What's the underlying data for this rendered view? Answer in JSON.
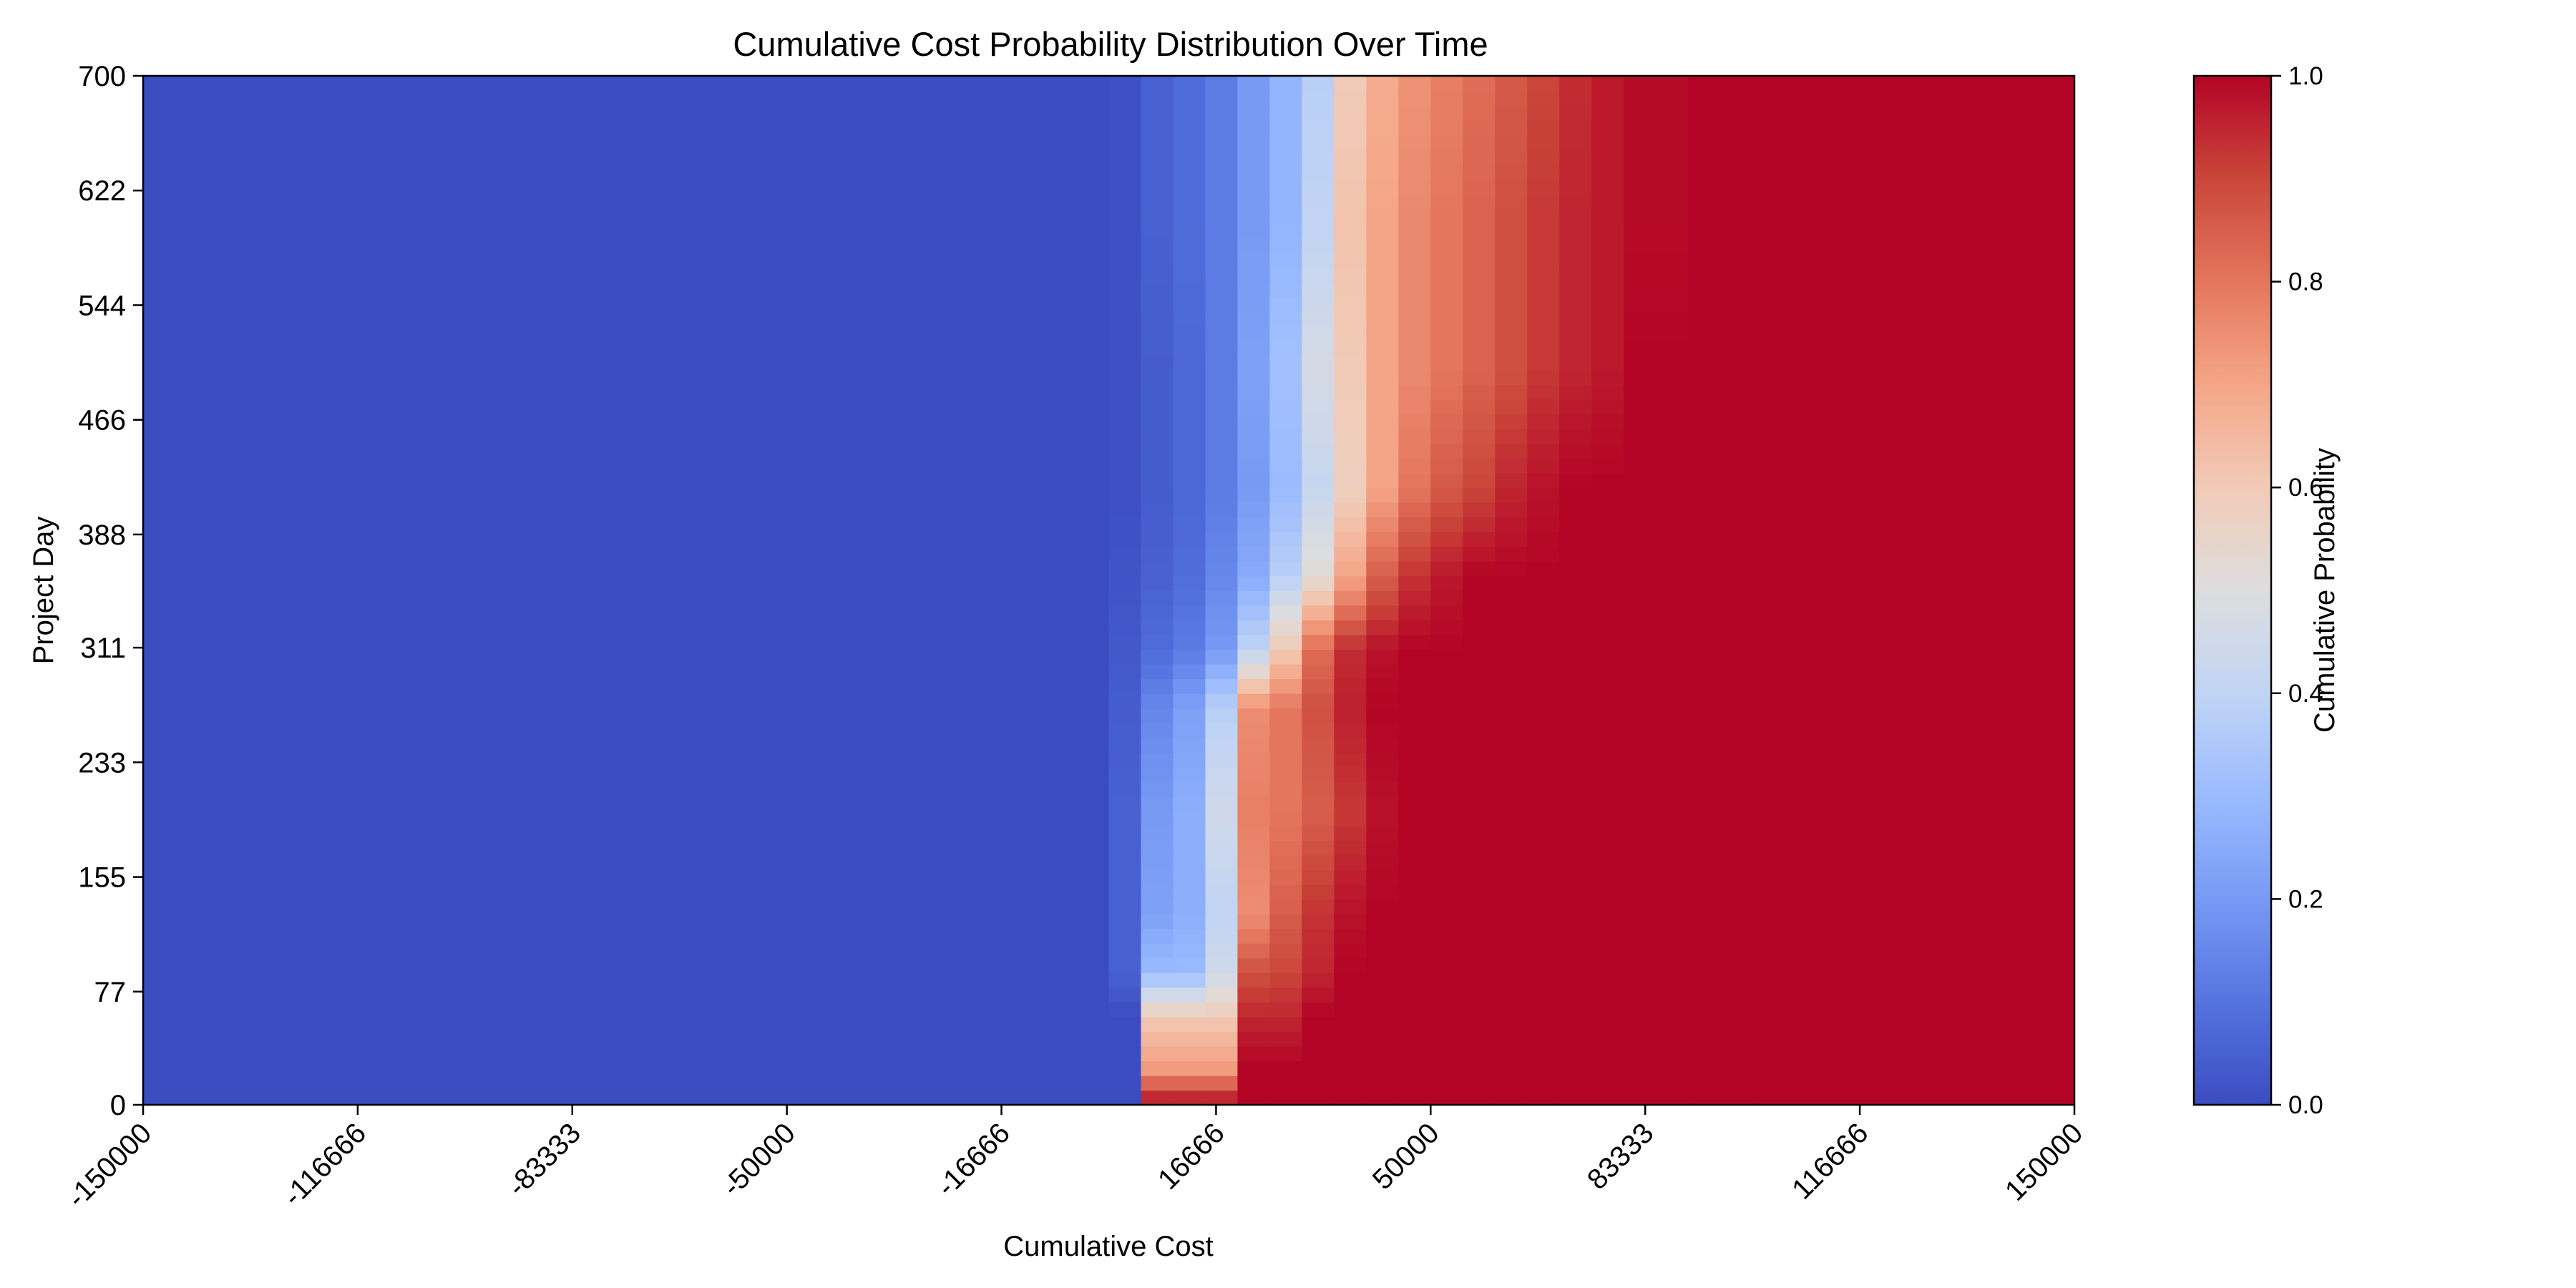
{
  "chart_data": {
    "type": "heatmap",
    "title": "Cumulative Cost Probability Distribution Over Time",
    "xlabel": "Cumulative Cost",
    "ylabel": "Project Day",
    "xlim": [
      -150000,
      150000
    ],
    "ylim": [
      0,
      700
    ],
    "x_ticks": [
      "-150000",
      "-116666",
      "-83333",
      "-50000",
      "-16666",
      "16666",
      "50000",
      "83333",
      "116666",
      "150000"
    ],
    "x_tick_values": [
      -150000,
      -116666,
      -83333,
      -50000,
      -16666,
      16666,
      50000,
      83333,
      116666,
      150000
    ],
    "y_ticks": [
      "0",
      "77",
      "155",
      "233",
      "311",
      "388",
      "466",
      "544",
      "622",
      "700"
    ],
    "y_tick_values": [
      0,
      77,
      155,
      233,
      311,
      388,
      466,
      544,
      622,
      700
    ],
    "colormap": "coolwarm",
    "colorbar": {
      "label": "Cumulative Probability",
      "range": [
        0.0,
        1.0
      ],
      "ticks": [
        "0.0",
        "0.2",
        "0.4",
        "0.6",
        "0.8",
        "1.0"
      ],
      "tick_values": [
        0.0,
        0.2,
        0.4,
        0.6,
        0.8,
        1.0
      ]
    },
    "grid": false,
    "cost_columns": [
      -150000,
      0,
      5000,
      10000,
      15000,
      20000,
      25000,
      30000,
      35000,
      40000,
      45000,
      50000,
      55000,
      60000,
      65000,
      70000,
      75000,
      80000,
      90000,
      100000,
      150000
    ],
    "rows": [
      {
        "day": 0,
        "probabilities": [
          0,
          0,
          1.0,
          1.0,
          1.0,
          1.0,
          1.0,
          1.0,
          1.0,
          1.0,
          1.0,
          1.0,
          1.0,
          1.0,
          1.0,
          1.0,
          1.0,
          1.0,
          1.0,
          1.0,
          1.0
        ]
      },
      {
        "day": 25,
        "probabilities": [
          0,
          0,
          0.72,
          0.72,
          0.72,
          1.0,
          1.0,
          1.0,
          1.0,
          1.0,
          1.0,
          1.0,
          1.0,
          1.0,
          1.0,
          1.0,
          1.0,
          1.0,
          1.0,
          1.0,
          1.0
        ]
      },
      {
        "day": 60,
        "probabilities": [
          0,
          0,
          0.6,
          0.6,
          0.6,
          0.95,
          0.95,
          1.0,
          1.0,
          1.0,
          1.0,
          1.0,
          1.0,
          1.0,
          1.0,
          1.0,
          1.0,
          1.0,
          1.0,
          1.0,
          1.0
        ]
      },
      {
        "day": 90,
        "probabilities": [
          0,
          0.05,
          0.3,
          0.3,
          0.45,
          0.88,
          0.9,
          0.95,
          1.0,
          1.0,
          1.0,
          1.0,
          1.0,
          1.0,
          1.0,
          1.0,
          1.0,
          1.0,
          1.0,
          1.0,
          1.0
        ]
      },
      {
        "day": 130,
        "probabilities": [
          0,
          0.05,
          0.22,
          0.26,
          0.4,
          0.75,
          0.85,
          0.93,
          0.98,
          1.0,
          1.0,
          1.0,
          1.0,
          1.0,
          1.0,
          1.0,
          1.0,
          1.0,
          1.0,
          1.0,
          1.0
        ]
      },
      {
        "day": 200,
        "probabilities": [
          0,
          0.05,
          0.2,
          0.26,
          0.45,
          0.78,
          0.8,
          0.85,
          0.92,
          0.98,
          1.0,
          1.0,
          1.0,
          1.0,
          1.0,
          1.0,
          1.0,
          1.0,
          1.0,
          1.0,
          1.0
        ]
      },
      {
        "day": 270,
        "probabilities": [
          0,
          0.04,
          0.15,
          0.22,
          0.38,
          0.75,
          0.8,
          0.88,
          0.96,
          1.0,
          1.0,
          1.0,
          1.0,
          1.0,
          1.0,
          1.0,
          1.0,
          1.0,
          1.0,
          1.0,
          1.0
        ]
      },
      {
        "day": 310,
        "probabilities": [
          0,
          0.03,
          0.08,
          0.12,
          0.2,
          0.4,
          0.6,
          0.82,
          0.94,
          0.98,
          1.0,
          1.0,
          1.0,
          1.0,
          1.0,
          1.0,
          1.0,
          1.0,
          1.0,
          1.0,
          1.0
        ]
      },
      {
        "day": 360,
        "probabilities": [
          0,
          0.02,
          0.05,
          0.08,
          0.15,
          0.25,
          0.38,
          0.52,
          0.7,
          0.85,
          0.93,
          0.97,
          1.0,
          1.0,
          1.0,
          1.0,
          1.0,
          1.0,
          1.0,
          1.0,
          1.0
        ]
      },
      {
        "day": 420,
        "probabilities": [
          0,
          0.01,
          0.04,
          0.07,
          0.12,
          0.2,
          0.3,
          0.42,
          0.58,
          0.7,
          0.8,
          0.86,
          0.9,
          0.95,
          0.98,
          1.0,
          1.0,
          1.0,
          1.0,
          1.0,
          1.0
        ]
      },
      {
        "day": 500,
        "probabilities": [
          0,
          0.01,
          0.04,
          0.07,
          0.12,
          0.22,
          0.32,
          0.47,
          0.6,
          0.7,
          0.76,
          0.8,
          0.84,
          0.88,
          0.92,
          0.95,
          0.97,
          1.0,
          1.0,
          1.0,
          1.0
        ]
      },
      {
        "day": 600,
        "probabilities": [
          0,
          0.01,
          0.05,
          0.08,
          0.12,
          0.2,
          0.28,
          0.4,
          0.62,
          0.7,
          0.76,
          0.8,
          0.84,
          0.88,
          0.92,
          0.95,
          0.97,
          0.99,
          1.0,
          1.0,
          1.0
        ]
      },
      {
        "day": 700,
        "probabilities": [
          0,
          0.01,
          0.05,
          0.08,
          0.12,
          0.2,
          0.28,
          0.38,
          0.6,
          0.68,
          0.74,
          0.78,
          0.82,
          0.86,
          0.9,
          0.94,
          0.97,
          0.99,
          1.0,
          1.0,
          1.0
        ]
      }
    ]
  }
}
